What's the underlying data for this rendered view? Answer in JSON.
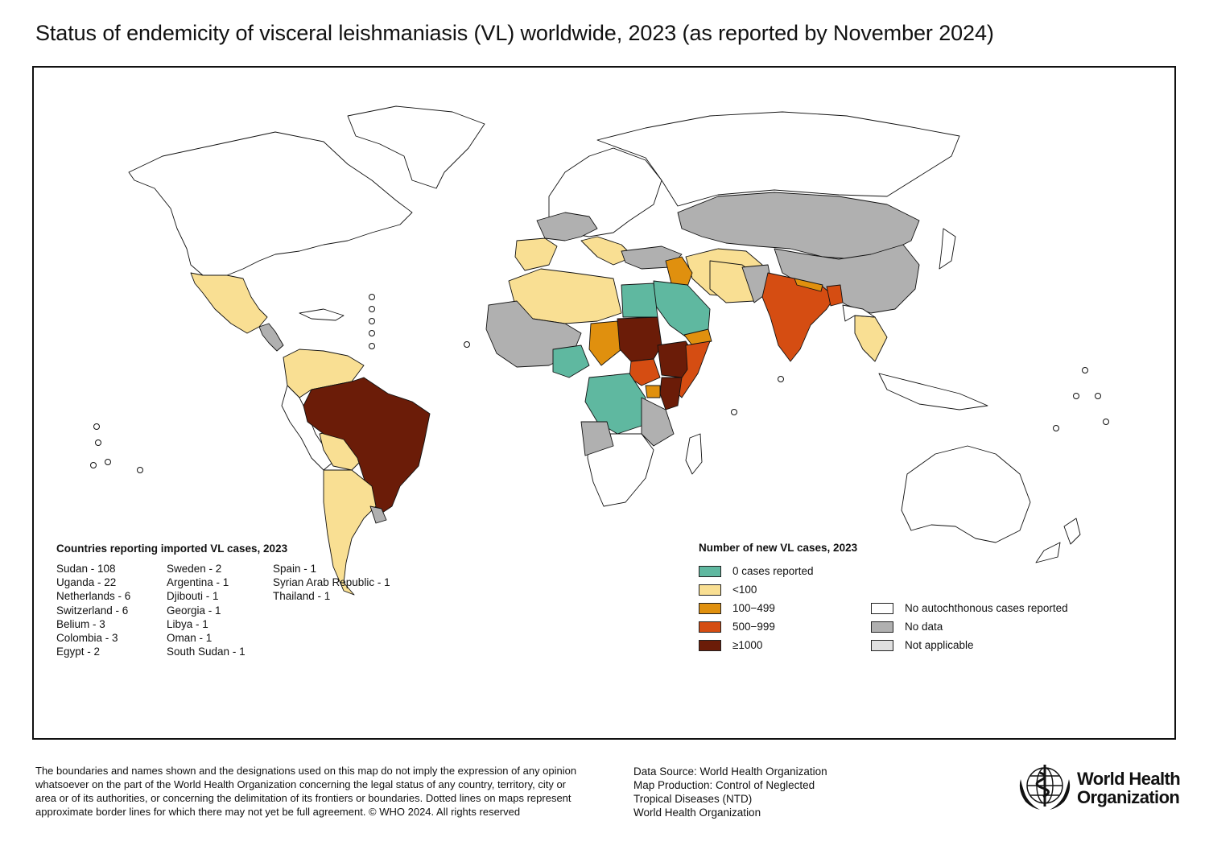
{
  "title": "Status of endemicity of visceral leishmaniasis (VL) worldwide, 2023 (as reported by November 2024)",
  "colors": {
    "zero_cases": "#5fb8a0",
    "lt100": "#f9df93",
    "c100_499": "#e0900e",
    "c500_999": "#d54d12",
    "ge1000": "#6b1c08",
    "no_autochthonous": "#ffffff",
    "no_data": "#b0b0b0",
    "not_applicable": "#e0e0e0"
  },
  "imported": {
    "heading": "Countries reporting imported VL cases, 2023",
    "columns": [
      [
        "Sudan - 108",
        "Uganda - 22",
        "Netherlands - 6",
        "Switzerland - 6",
        "Belium - 3",
        "Colombia - 3",
        "Egypt - 2"
      ],
      [
        "Sweden - 2",
        "Argentina - 1",
        "Djibouti - 1",
        "Georgia - 1",
        "Libya - 1",
        "Oman - 1",
        "South Sudan - 1"
      ],
      [
        "Spain - 1",
        "Syrian Arab Republic - 1",
        "Thailand - 1"
      ]
    ]
  },
  "legend": {
    "heading": "Number of new VL cases, 2023",
    "left": [
      {
        "label": "0 cases reported",
        "color": "#5fb8a0"
      },
      {
        "label": "<100",
        "color": "#f9df93"
      },
      {
        "label": "100−499",
        "color": "#e0900e"
      },
      {
        "label": "500−999",
        "color": "#d54d12"
      },
      {
        "label": "≥1000",
        "color": "#6b1c08"
      }
    ],
    "right": [
      {
        "label": "No autochthonous cases reported",
        "color": "#ffffff"
      },
      {
        "label": "No data",
        "color": "#b0b0b0"
      },
      {
        "label": "Not applicable",
        "color": "#e0e0e0"
      }
    ]
  },
  "disclaimer": "The boundaries and names shown and the designations used on this map do not imply the expression of any opinion whatsoever on the part of the World Health Organization concerning the legal status of any country, territory, city or area or of its authorities, or concerning the delimitation of its frontiers or boundaries. Dotted lines on maps represent approximate border lines for which there may not yet be full agreement. © WHO 2024. All rights reserved",
  "source": {
    "lines": [
      "Data Source: World Health Organization",
      "Map Production: Control of Neglected",
      "Tropical Diseases (NTD)",
      "World Health Organization"
    ]
  },
  "logo": {
    "line1": "World Health",
    "line2": "Organization",
    "icon": "who-emblem-icon"
  }
}
